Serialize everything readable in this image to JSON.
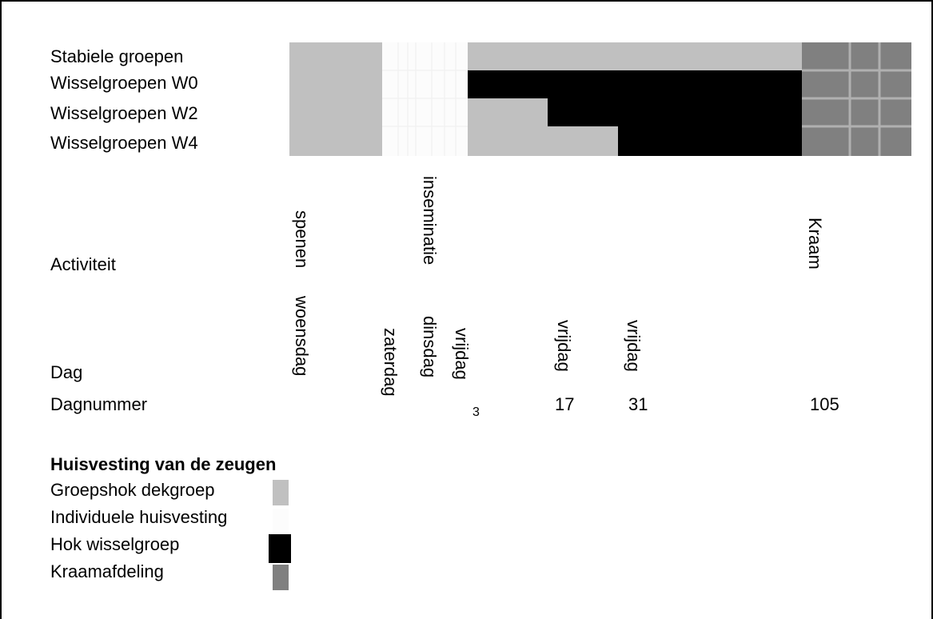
{
  "rows": [
    "Stabiele groepen",
    "Wisselgroepen W0",
    "Wisselgroepen W2",
    "Wisselgroepen W4"
  ],
  "activity": {
    "label": "Activiteit",
    "items": [
      "spenen",
      "inseminatie",
      "Kraam"
    ]
  },
  "day": {
    "label": "Dag",
    "items": [
      "woensdag",
      "zaterdag",
      "dinsdag",
      "vrijdag",
      "vrijdag",
      "vrijdag"
    ]
  },
  "day_number": {
    "label": "Dagnummer",
    "items": [
      "3",
      "17",
      "31",
      "105"
    ]
  },
  "legend": {
    "title": "Huisvesting van de zeugen",
    "items": [
      "Groepshok dekgroep",
      "Individuele huisvesting",
      "Hok wisselgroep",
      "Kraamafdeling"
    ]
  }
}
